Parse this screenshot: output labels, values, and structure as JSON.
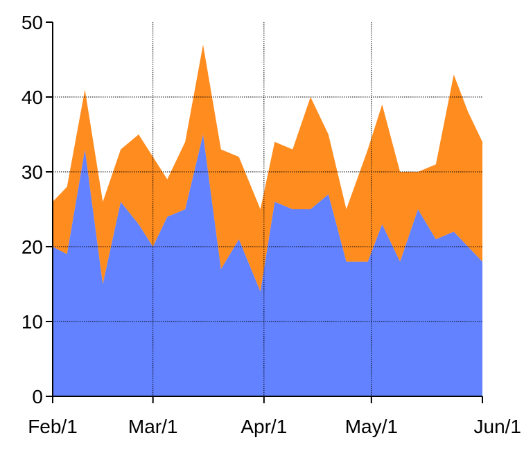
{
  "chart_data": {
    "type": "area",
    "stacked": true,
    "title": "",
    "xlabel": "",
    "ylabel": "",
    "xlim": [
      "2023-02-01",
      "2023-06-01"
    ],
    "ylim": [
      0,
      50
    ],
    "grid": true,
    "x_ticks": [
      {
        "date": "2023-02-01",
        "label": "Feb/1"
      },
      {
        "date": "2023-03-01",
        "label": "Mar/1"
      },
      {
        "date": "2023-04-01",
        "label": "Apr/1"
      },
      {
        "date": "2023-05-01",
        "label": "May/1"
      },
      {
        "date": "2023-06-01",
        "label": "Jun/1"
      }
    ],
    "y_ticks": [
      0,
      10,
      20,
      30,
      40,
      50
    ],
    "x": [
      "2023-02-01",
      "2023-02-05",
      "2023-02-10",
      "2023-02-15",
      "2023-02-20",
      "2023-02-25",
      "2023-03-01",
      "2023-03-05",
      "2023-03-10",
      "2023-03-15",
      "2023-03-20",
      "2023-03-25",
      "2023-03-31",
      "2023-04-04",
      "2023-04-09",
      "2023-04-14",
      "2023-04-19",
      "2023-04-24",
      "2023-04-30",
      "2023-05-04",
      "2023-05-09",
      "2023-05-14",
      "2023-05-19",
      "2023-05-24",
      "2023-05-28",
      "2023-06-01"
    ],
    "series": [
      {
        "color": "#6282ff",
        "values": [
          20,
          19,
          33,
          15,
          26,
          23,
          20,
          24,
          25,
          35,
          17,
          21,
          14,
          26,
          25,
          25,
          27,
          18,
          18,
          23,
          18,
          25,
          21,
          22,
          20,
          18
        ]
      },
      {
        "color": "#ff8c1f",
        "values": [
          6,
          9,
          8,
          11,
          7,
          12,
          12,
          5,
          9,
          12,
          16,
          11,
          11,
          8,
          8,
          15,
          8,
          7,
          15,
          16,
          12,
          5,
          10,
          21,
          18,
          16
        ]
      }
    ]
  }
}
